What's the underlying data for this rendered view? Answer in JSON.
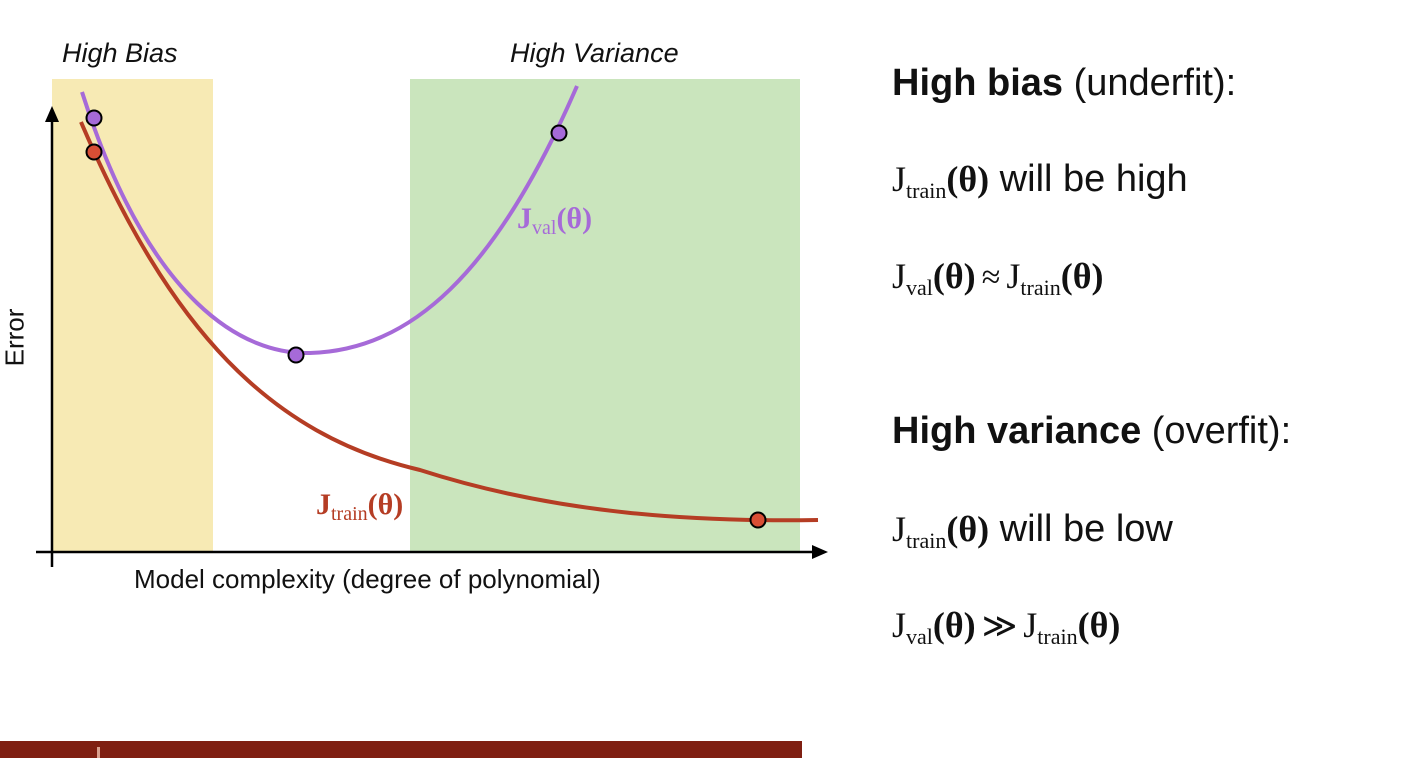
{
  "regions": {
    "high_bias_label": "High Bias",
    "high_variance_label": "High Variance"
  },
  "axes": {
    "xlabel": "Model complexity (degree of polynomial)",
    "ylabel": "Error"
  },
  "curves": {
    "val": {
      "J": "J",
      "sub": "val",
      "theta": "(θ)",
      "color": "#a66ad8"
    },
    "train": {
      "J": "J",
      "sub": "train",
      "theta": "(θ)",
      "color": "#b53d24"
    }
  },
  "colors": {
    "bias_region": "#f7eab4",
    "variance_region": "#cae5bd",
    "axis": "#000000",
    "val_point": "#a66ad8",
    "train_point": "#d84e35",
    "footer_bar": "#7f1f12"
  },
  "panel": {
    "bias_heading_bold": "High bias",
    "bias_heading_rest": " (underfit):",
    "bias_line1": {
      "J": "J",
      "sub": "train",
      "theta": "(θ)",
      "tail": " will be high"
    },
    "bias_line2": {
      "lhs": {
        "J": "J",
        "sub": "val",
        "theta": "(θ)"
      },
      "op": "≈",
      "rhs": {
        "J": "J",
        "sub": "train",
        "theta": "(θ)"
      }
    },
    "variance_heading_bold": "High variance",
    "variance_heading_rest": " (overfit):",
    "variance_line1": {
      "J": "J",
      "sub": "train",
      "theta": "(θ)",
      "tail": " will be low"
    },
    "variance_line2": {
      "lhs": {
        "J": "J",
        "sub": "val",
        "theta": "(θ)"
      },
      "op": "≫",
      "rhs": {
        "J": "J",
        "sub": "train",
        "theta": "(θ)"
      }
    }
  }
}
